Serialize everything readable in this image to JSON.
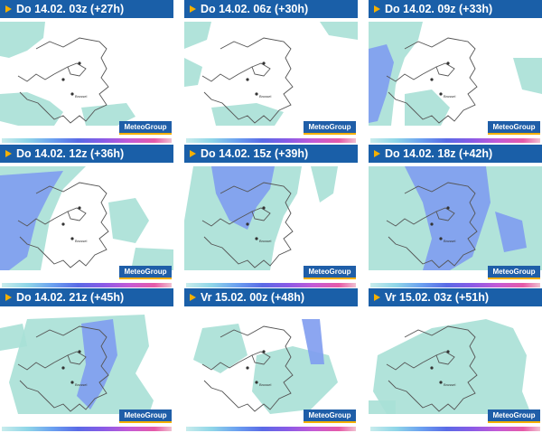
{
  "panels": [
    {
      "label": "Do 14.02. 03z (+27h)"
    },
    {
      "label": "Do 14.02. 06z (+30h)"
    },
    {
      "label": "Do 14.02. 09z (+33h)"
    },
    {
      "label": "Do 14.02. 12z (+36h)"
    },
    {
      "label": "Do 14.02. 15z (+39h)"
    },
    {
      "label": "Do 14.02. 18z (+42h)"
    },
    {
      "label": "Do 14.02. 21z (+45h)"
    },
    {
      "label": "Vr 15.02. 00z (+48h)"
    },
    {
      "label": "Vr 15.02. 03z (+51h)"
    }
  ],
  "brand": "MeteoGroup",
  "city_label": "Brussel",
  "colors": {
    "header": "#1a5fa8",
    "arrow": "#f5b000",
    "precip_light": "#a8e0d6",
    "precip_heavy": "#7f9cf0"
  }
}
